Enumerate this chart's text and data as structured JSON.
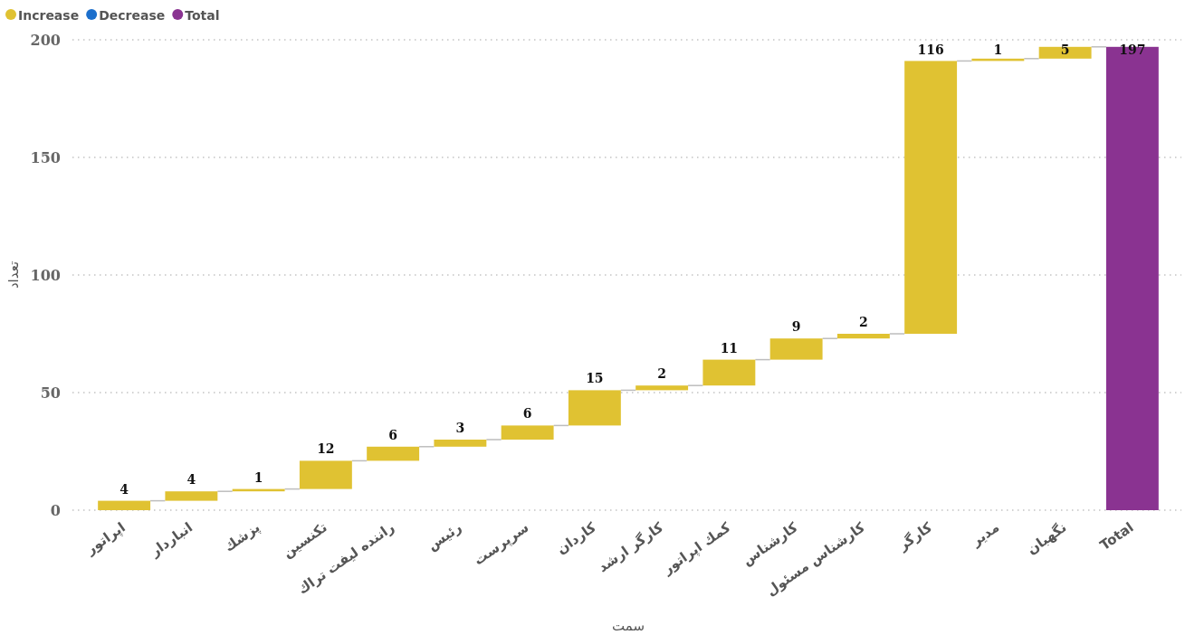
{
  "chart_data": {
    "type": "bar",
    "xlabel": "سمت",
    "ylabel": "تعداد",
    "categories": [
      "اپراتور",
      "انباردار",
      "پزشك",
      "تكنسین",
      "راننده لیفت تراك",
      "رئیس",
      "سرپرست",
      "كاردان",
      "كارگر ارشد",
      "كمك اپراتور",
      "کارشناس",
      "کارشناس مسئول",
      "کارگر",
      "مدیر",
      "نگهبان",
      "Total"
    ],
    "series": [
      {
        "name": "Increase",
        "color": "#e0c232",
        "values": [
          4,
          4,
          1,
          12,
          6,
          3,
          6,
          15,
          2,
          11,
          9,
          2,
          116,
          1,
          5,
          null
        ],
        "base": [
          0,
          4,
          8,
          9,
          21,
          27,
          30,
          36,
          51,
          53,
          64,
          73,
          75,
          191,
          192,
          null
        ]
      },
      {
        "name": "Decrease",
        "color": "#1c6fcc",
        "values": [
          null,
          null,
          null,
          null,
          null,
          null,
          null,
          null,
          null,
          null,
          null,
          null,
          null,
          null,
          null,
          null
        ]
      },
      {
        "name": "Total",
        "color": "#8a3391",
        "values": [
          null,
          null,
          null,
          null,
          null,
          null,
          null,
          null,
          null,
          null,
          null,
          null,
          null,
          null,
          null,
          197
        ],
        "base": [
          null,
          null,
          null,
          null,
          null,
          null,
          null,
          null,
          null,
          null,
          null,
          null,
          null,
          null,
          null,
          0
        ]
      }
    ],
    "ylim": [
      0,
      200
    ],
    "yticks": [
      0,
      50,
      100,
      150,
      200
    ],
    "grid": "y",
    "legend": "top left",
    "data_labels": true
  }
}
